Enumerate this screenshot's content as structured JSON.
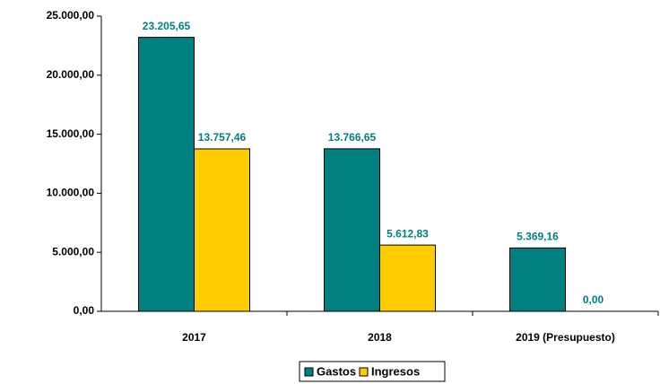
{
  "chart_data": {
    "type": "bar",
    "categories": [
      "2017",
      "2018",
      "2019 (Presupuesto)"
    ],
    "series": [
      {
        "name": "Gastos",
        "color": "#008080",
        "values": [
          23205.65,
          13766.65,
          5369.16
        ],
        "value_labels": [
          "23.205,65",
          "13.766,65",
          "5.369,16"
        ]
      },
      {
        "name": "Ingresos",
        "color": "#FFCC00",
        "values": [
          13757.46,
          5612.83,
          0
        ],
        "value_labels": [
          "13.757,46",
          "5.612,83",
          "0,00"
        ]
      }
    ],
    "ylim": [
      0,
      25000
    ],
    "yticks": [
      {
        "value": 0,
        "label": "0,00"
      },
      {
        "value": 5000,
        "label": "5.000,00"
      },
      {
        "value": 10000,
        "label": "10.000,00"
      },
      {
        "value": 15000,
        "label": "15.000,00"
      },
      {
        "value": 20000,
        "label": "20.000,00"
      },
      {
        "value": 25000,
        "label": "25.000,00"
      }
    ],
    "legend": "bottom"
  }
}
